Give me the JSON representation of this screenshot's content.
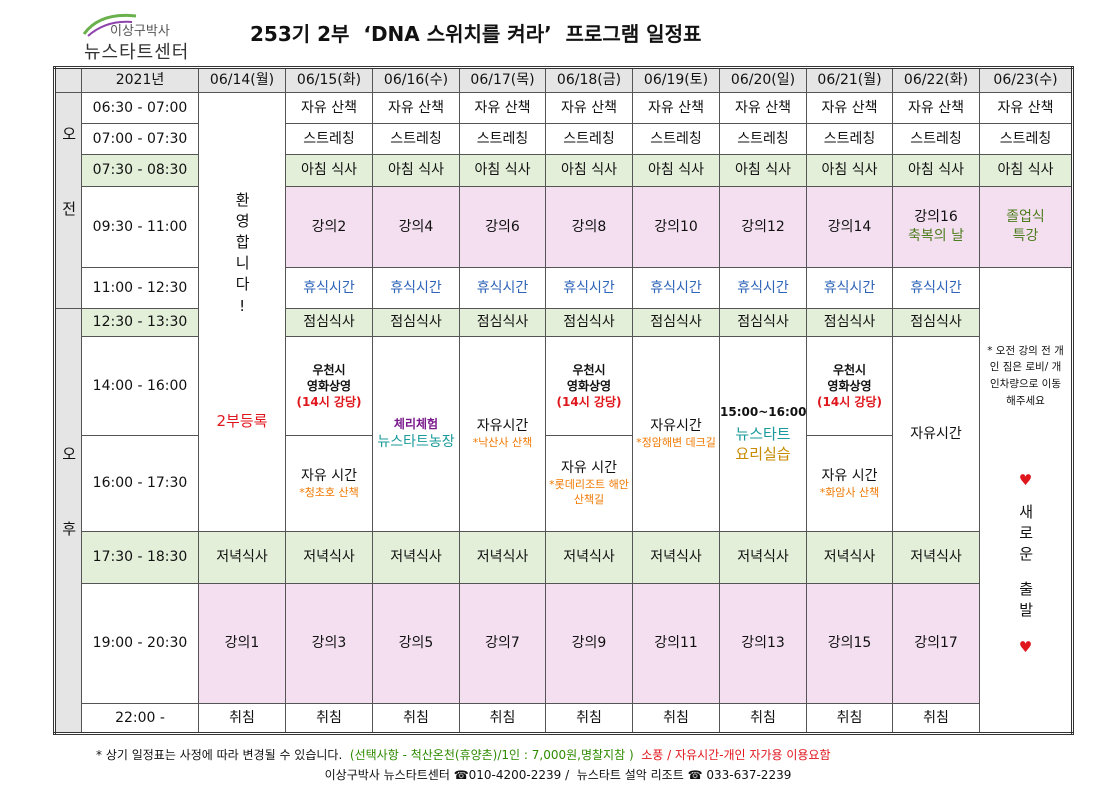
{
  "header": {
    "logo_line1": "이상구박사",
    "logo_line2": "뉴스타트센터",
    "title": "253기 2부  ‘DNA 스위치를 켜라’  프로그램 일정표"
  },
  "table": {
    "columns": [
      "2021년",
      "06/14(월)",
      "06/15(화)",
      "06/16(수)",
      "06/17(목)",
      "06/18(금)",
      "06/19(토)",
      "06/20(일)",
      "06/21(월)",
      "06/22(화)",
      "06/23(수)"
    ],
    "side": [
      "오전",
      "오후"
    ],
    "times": [
      "06:30 - 07:00",
      "07:00 - 07:30",
      "07:30 - 08:30",
      "09:30 - 11:00",
      "11:00 - 12:30",
      "12:30 - 13:30",
      "14:00 - 16:00",
      "16:00 - 17:30",
      "17:30 - 18:30",
      "19:00 - 20:30",
      "22:00 -"
    ],
    "rows": [
      [
        [
          "환영합니다!",
          "2부등록"
        ],
        [
          "자유 산책"
        ],
        [
          "자유 산책"
        ],
        [
          "자유 산책"
        ],
        [
          "자유 산책"
        ],
        [
          "자유 산책"
        ],
        [
          "자유 산책"
        ],
        [
          "자유 산책"
        ],
        [
          "자유 산책"
        ],
        [
          "자유 산책"
        ]
      ],
      [
        [
          "스트레칭"
        ],
        [
          "스트레칭"
        ],
        [
          "스트레칭"
        ],
        [
          "스트레칭"
        ],
        [
          "스트레칭"
        ],
        [
          "스트레칭"
        ],
        [
          "스트레칭"
        ],
        [
          "스트레칭"
        ],
        [
          "스트레칭"
        ]
      ],
      [
        [
          "아침 식사"
        ],
        [
          "아침 식사"
        ],
        [
          "아침 식사"
        ],
        [
          "아침 식사"
        ],
        [
          "아침 식사"
        ],
        [
          "아침 식사"
        ],
        [
          "아침 식사"
        ],
        [
          "아침 식사"
        ],
        [
          "아침 식사"
        ]
      ],
      [
        [
          "강의2"
        ],
        [
          "강의4"
        ],
        [
          "강의6"
        ],
        [
          "강의8"
        ],
        [
          "강의10"
        ],
        [
          "강의12"
        ],
        [
          "강의14"
        ],
        [
          "강의16",
          "축복의 날"
        ],
        [
          "졸업식",
          "특강"
        ]
      ],
      [
        [
          "휴식시간"
        ],
        [
          "휴식시간"
        ],
        [
          "휴식시간"
        ],
        [
          "휴식시간"
        ],
        [
          "휴식시간"
        ],
        [
          "휴식시간"
        ],
        [
          "휴식시간"
        ],
        [
          "휴식시간"
        ],
        [
          "* 오전 강의 전 개인 짐은 로비/ 개인차량으로 이동해주세요",
          "♥",
          "새로운",
          "출발",
          "♥"
        ]
      ],
      [
        [
          "점심식사"
        ],
        [
          "점심식사"
        ],
        [
          "점심식사"
        ],
        [
          "점심식사"
        ],
        [
          "점심식사"
        ],
        [
          "점심식사"
        ],
        [
          "점심식사"
        ],
        [
          "점심식사"
        ]
      ],
      [
        [
          "우천시",
          "영화상영",
          "(14시 강당)"
        ],
        [
          "체리체험",
          "뉴스타트농장"
        ],
        [
          "자유시간",
          "*낙산사 산책"
        ],
        [
          "우천시",
          "영화상영",
          "(14시 강당)"
        ],
        [
          "자유시간",
          "*정암해변 데크길"
        ],
        [
          "15:00~16:00",
          "뉴스타트",
          "요리실습"
        ],
        [
          "우천시",
          "영화상영",
          "(14시 강당)"
        ],
        [
          "자유시간"
        ]
      ],
      [
        [
          "자유 시간",
          "*청초호 산책"
        ],
        [
          "자유 시간",
          "*롯데리조트 해안 산책길"
        ],
        [
          "자유 시간",
          "*화암사 산책"
        ]
      ],
      [
        [
          "저녁식사"
        ],
        [
          "저녁식사"
        ],
        [
          "저녁식사"
        ],
        [
          "저녁식사"
        ],
        [
          "저녁식사"
        ],
        [
          "저녁식사"
        ],
        [
          "저녁식사"
        ],
        [
          "저녁식사"
        ],
        [
          "저녁식사"
        ]
      ],
      [
        [
          "강의1"
        ],
        [
          "강의3"
        ],
        [
          "강의5"
        ],
        [
          "강의7"
        ],
        [
          "강의9"
        ],
        [
          "강의11"
        ],
        [
          "강의13"
        ],
        [
          "강의15"
        ],
        [
          "강의17"
        ]
      ],
      [
        [
          "취침"
        ],
        [
          "취침"
        ],
        [
          "취침"
        ],
        [
          "취침"
        ],
        [
          "취침"
        ],
        [
          "취침"
        ],
        [
          "취침"
        ],
        [
          "취침"
        ],
        [
          "취침"
        ]
      ]
    ]
  },
  "footer": {
    "note": "* 상기 일정표는 사정에 따라 변경될 수 있습니다.",
    "option": "(선택사항 - 척산온천(휴양촌)/1인 : 7,000원,명찰지참 )",
    "picnic": "소풍 / 자유시간-개인 자가용 이용요함",
    "contact": "이상구박사 뉴스타트센터 ☎010-4200-2239 /  뉴스타트 설악 리조트 ☎ 033-637-2239"
  }
}
